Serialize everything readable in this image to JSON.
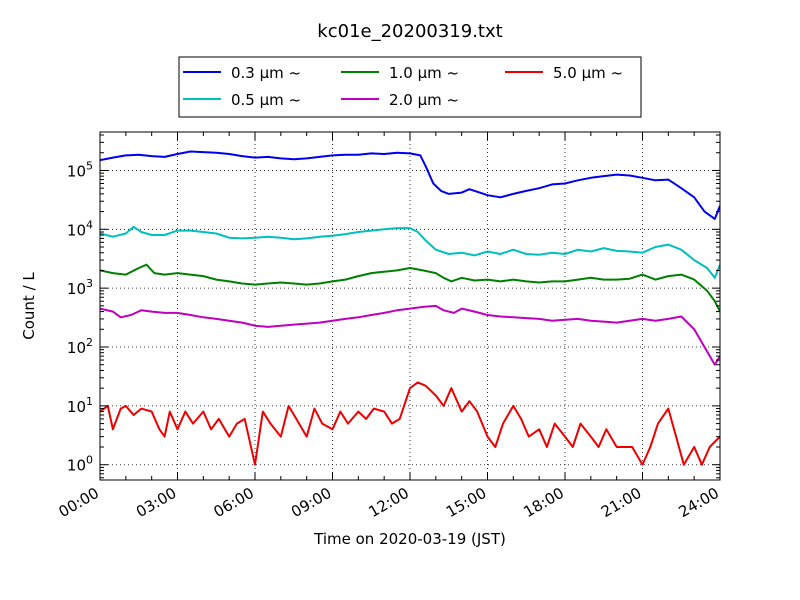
{
  "chart_data": {
    "type": "line",
    "title": "kc01e_20200319.txt",
    "xlabel": "Time on 2020-03-19 (JST)",
    "ylabel": "Count / L",
    "yscale": "log",
    "xlim": [
      "00:00",
      "24:00"
    ],
    "ylim": [
      0.55,
      450000
    ],
    "grid": true,
    "legend_position": "top-center",
    "xticks": [
      "00:00",
      "03:00",
      "06:00",
      "09:00",
      "12:00",
      "15:00",
      "18:00",
      "21:00",
      "24:00"
    ],
    "xtick_hours": [
      0,
      3,
      6,
      9,
      12,
      15,
      18,
      21,
      24
    ],
    "yticks": [
      1,
      10,
      100,
      1000,
      10000,
      100000
    ],
    "ytick_labels": [
      {
        "base": "10",
        "exp": "0"
      },
      {
        "base": "10",
        "exp": "1"
      },
      {
        "base": "10",
        "exp": "2"
      },
      {
        "base": "10",
        "exp": "3"
      },
      {
        "base": "10",
        "exp": "4"
      },
      {
        "base": "10",
        "exp": "5"
      }
    ],
    "series": [
      {
        "name": "0.3 μm ~",
        "color": "#0000ee",
        "points": [
          [
            0.0,
            150000
          ],
          [
            0.5,
            165000
          ],
          [
            1.0,
            180000
          ],
          [
            1.5,
            185000
          ],
          [
            2.0,
            175000
          ],
          [
            2.5,
            170000
          ],
          [
            3.0,
            190000
          ],
          [
            3.5,
            210000
          ],
          [
            4.0,
            205000
          ],
          [
            4.5,
            200000
          ],
          [
            5.0,
            190000
          ],
          [
            5.5,
            175000
          ],
          [
            6.0,
            165000
          ],
          [
            6.5,
            170000
          ],
          [
            7.0,
            160000
          ],
          [
            7.5,
            155000
          ],
          [
            8.0,
            160000
          ],
          [
            8.5,
            170000
          ],
          [
            9.0,
            180000
          ],
          [
            9.5,
            185000
          ],
          [
            10.0,
            185000
          ],
          [
            10.5,
            195000
          ],
          [
            11.0,
            190000
          ],
          [
            11.5,
            200000
          ],
          [
            12.0,
            195000
          ],
          [
            12.4,
            180000
          ],
          [
            12.6,
            120000
          ],
          [
            12.9,
            60000
          ],
          [
            13.2,
            45000
          ],
          [
            13.5,
            40000
          ],
          [
            14.0,
            42000
          ],
          [
            14.3,
            48000
          ],
          [
            14.7,
            42000
          ],
          [
            15.0,
            38000
          ],
          [
            15.5,
            35000
          ],
          [
            16.0,
            40000
          ],
          [
            16.5,
            45000
          ],
          [
            17.0,
            50000
          ],
          [
            17.5,
            58000
          ],
          [
            18.0,
            60000
          ],
          [
            18.5,
            68000
          ],
          [
            19.0,
            75000
          ],
          [
            19.5,
            80000
          ],
          [
            20.0,
            85000
          ],
          [
            20.5,
            82000
          ],
          [
            21.0,
            75000
          ],
          [
            21.5,
            68000
          ],
          [
            22.0,
            70000
          ],
          [
            22.5,
            50000
          ],
          [
            23.0,
            35000
          ],
          [
            23.4,
            20000
          ],
          [
            23.8,
            15000
          ],
          [
            24.0,
            25000
          ]
        ]
      },
      {
        "name": "0.5 μm ~",
        "color": "#00bfbf",
        "points": [
          [
            0.0,
            8500
          ],
          [
            0.5,
            7500
          ],
          [
            1.0,
            8500
          ],
          [
            1.3,
            11000
          ],
          [
            1.6,
            9000
          ],
          [
            2.0,
            8000
          ],
          [
            2.5,
            8000
          ],
          [
            3.0,
            9500
          ],
          [
            3.5,
            9500
          ],
          [
            4.0,
            9000
          ],
          [
            4.5,
            8500
          ],
          [
            5.0,
            7200
          ],
          [
            5.5,
            7000
          ],
          [
            6.0,
            7200
          ],
          [
            6.5,
            7500
          ],
          [
            7.0,
            7200
          ],
          [
            7.5,
            6800
          ],
          [
            8.0,
            7000
          ],
          [
            8.5,
            7500
          ],
          [
            9.0,
            7800
          ],
          [
            9.5,
            8300
          ],
          [
            10.0,
            9000
          ],
          [
            10.5,
            9500
          ],
          [
            11.0,
            10000
          ],
          [
            11.5,
            10500
          ],
          [
            12.0,
            10500
          ],
          [
            12.3,
            9000
          ],
          [
            12.6,
            6500
          ],
          [
            13.0,
            4500
          ],
          [
            13.5,
            3800
          ],
          [
            14.0,
            4000
          ],
          [
            14.5,
            3600
          ],
          [
            15.0,
            4200
          ],
          [
            15.5,
            3800
          ],
          [
            16.0,
            4500
          ],
          [
            16.5,
            3800
          ],
          [
            17.0,
            3700
          ],
          [
            17.5,
            4000
          ],
          [
            18.0,
            3800
          ],
          [
            18.5,
            4500
          ],
          [
            19.0,
            4200
          ],
          [
            19.5,
            4800
          ],
          [
            20.0,
            4300
          ],
          [
            20.5,
            4200
          ],
          [
            21.0,
            4000
          ],
          [
            21.5,
            5000
          ],
          [
            22.0,
            5500
          ],
          [
            22.5,
            4500
          ],
          [
            23.0,
            3000
          ],
          [
            23.5,
            2200
          ],
          [
            23.8,
            1500
          ],
          [
            24.0,
            2500
          ]
        ]
      },
      {
        "name": "1.0 μm ~",
        "color": "#008000",
        "points": [
          [
            0.0,
            2000
          ],
          [
            0.5,
            1800
          ],
          [
            1.0,
            1700
          ],
          [
            1.5,
            2200
          ],
          [
            1.8,
            2500
          ],
          [
            2.1,
            1800
          ],
          [
            2.5,
            1700
          ],
          [
            3.0,
            1800
          ],
          [
            3.5,
            1700
          ],
          [
            4.0,
            1600
          ],
          [
            4.5,
            1400
          ],
          [
            5.0,
            1300
          ],
          [
            5.5,
            1200
          ],
          [
            6.0,
            1150
          ],
          [
            6.5,
            1200
          ],
          [
            7.0,
            1250
          ],
          [
            7.5,
            1200
          ],
          [
            8.0,
            1150
          ],
          [
            8.5,
            1200
          ],
          [
            9.0,
            1300
          ],
          [
            9.5,
            1400
          ],
          [
            10.0,
            1600
          ],
          [
            10.5,
            1800
          ],
          [
            11.0,
            1900
          ],
          [
            11.5,
            2000
          ],
          [
            12.0,
            2200
          ],
          [
            12.5,
            2000
          ],
          [
            13.0,
            1800
          ],
          [
            13.3,
            1500
          ],
          [
            13.6,
            1300
          ],
          [
            14.0,
            1500
          ],
          [
            14.5,
            1350
          ],
          [
            15.0,
            1400
          ],
          [
            15.5,
            1300
          ],
          [
            16.0,
            1400
          ],
          [
            16.5,
            1300
          ],
          [
            17.0,
            1250
          ],
          [
            17.5,
            1300
          ],
          [
            18.0,
            1300
          ],
          [
            18.5,
            1400
          ],
          [
            19.0,
            1500
          ],
          [
            19.5,
            1400
          ],
          [
            20.0,
            1400
          ],
          [
            20.5,
            1450
          ],
          [
            21.0,
            1700
          ],
          [
            21.5,
            1400
          ],
          [
            22.0,
            1600
          ],
          [
            22.5,
            1700
          ],
          [
            23.0,
            1400
          ],
          [
            23.5,
            900
          ],
          [
            23.8,
            600
          ],
          [
            24.0,
            400
          ]
        ]
      },
      {
        "name": "2.0 μm ~",
        "color": "#bf00bf",
        "points": [
          [
            0.0,
            450
          ],
          [
            0.5,
            400
          ],
          [
            0.8,
            320
          ],
          [
            1.2,
            350
          ],
          [
            1.6,
            420
          ],
          [
            2.0,
            400
          ],
          [
            2.5,
            380
          ],
          [
            3.0,
            380
          ],
          [
            3.5,
            350
          ],
          [
            4.0,
            320
          ],
          [
            4.5,
            300
          ],
          [
            5.0,
            280
          ],
          [
            5.5,
            260
          ],
          [
            6.0,
            230
          ],
          [
            6.5,
            220
          ],
          [
            7.0,
            230
          ],
          [
            7.5,
            240
          ],
          [
            8.0,
            250
          ],
          [
            8.5,
            260
          ],
          [
            9.0,
            280
          ],
          [
            9.5,
            300
          ],
          [
            10.0,
            320
          ],
          [
            10.5,
            350
          ],
          [
            11.0,
            380
          ],
          [
            11.5,
            420
          ],
          [
            12.0,
            450
          ],
          [
            12.5,
            480
          ],
          [
            13.0,
            500
          ],
          [
            13.3,
            420
          ],
          [
            13.7,
            380
          ],
          [
            14.0,
            450
          ],
          [
            14.5,
            400
          ],
          [
            15.0,
            350
          ],
          [
            15.5,
            330
          ],
          [
            16.0,
            320
          ],
          [
            16.5,
            310
          ],
          [
            17.0,
            300
          ],
          [
            17.5,
            280
          ],
          [
            18.0,
            290
          ],
          [
            18.5,
            300
          ],
          [
            19.0,
            280
          ],
          [
            19.5,
            270
          ],
          [
            20.0,
            260
          ],
          [
            20.5,
            280
          ],
          [
            21.0,
            300
          ],
          [
            21.5,
            280
          ],
          [
            22.0,
            300
          ],
          [
            22.5,
            330
          ],
          [
            23.0,
            200
          ],
          [
            23.4,
            100
          ],
          [
            23.8,
            50
          ],
          [
            24.0,
            70
          ]
        ]
      },
      {
        "name": "5.0 μm ~",
        "color": "#ee0000",
        "points": [
          [
            0.0,
            8
          ],
          [
            0.3,
            10
          ],
          [
            0.5,
            4
          ],
          [
            0.8,
            9
          ],
          [
            1.0,
            10
          ],
          [
            1.3,
            7
          ],
          [
            1.6,
            9
          ],
          [
            2.0,
            8
          ],
          [
            2.3,
            4
          ],
          [
            2.5,
            3
          ],
          [
            2.7,
            8
          ],
          [
            3.0,
            4
          ],
          [
            3.3,
            8
          ],
          [
            3.6,
            5
          ],
          [
            4.0,
            8
          ],
          [
            4.3,
            4
          ],
          [
            4.6,
            6
          ],
          [
            5.0,
            3
          ],
          [
            5.3,
            5
          ],
          [
            5.6,
            6
          ],
          [
            6.0,
            1
          ],
          [
            6.3,
            8
          ],
          [
            6.6,
            5
          ],
          [
            7.0,
            3
          ],
          [
            7.3,
            10
          ],
          [
            7.6,
            6
          ],
          [
            8.0,
            3
          ],
          [
            8.3,
            9
          ],
          [
            8.6,
            5
          ],
          [
            9.0,
            4
          ],
          [
            9.3,
            8
          ],
          [
            9.6,
            5
          ],
          [
            10.0,
            8
          ],
          [
            10.3,
            6
          ],
          [
            10.6,
            9
          ],
          [
            11.0,
            8
          ],
          [
            11.3,
            5
          ],
          [
            11.6,
            6
          ],
          [
            12.0,
            20
          ],
          [
            12.3,
            25
          ],
          [
            12.6,
            22
          ],
          [
            13.0,
            15
          ],
          [
            13.3,
            10
          ],
          [
            13.6,
            20
          ],
          [
            14.0,
            8
          ],
          [
            14.3,
            12
          ],
          [
            14.6,
            8
          ],
          [
            15.0,
            3
          ],
          [
            15.3,
            2
          ],
          [
            15.6,
            5
          ],
          [
            16.0,
            10
          ],
          [
            16.3,
            6
          ],
          [
            16.6,
            3
          ],
          [
            17.0,
            4
          ],
          [
            17.3,
            2
          ],
          [
            17.6,
            5
          ],
          [
            18.0,
            3
          ],
          [
            18.3,
            2
          ],
          [
            18.6,
            5
          ],
          [
            19.0,
            3
          ],
          [
            19.3,
            2
          ],
          [
            19.6,
            4
          ],
          [
            20.0,
            2
          ],
          [
            20.3,
            2
          ],
          [
            20.6,
            2
          ],
          [
            21.0,
            1
          ],
          [
            21.3,
            2
          ],
          [
            21.6,
            5
          ],
          [
            22.0,
            9
          ],
          [
            22.3,
            3
          ],
          [
            22.6,
            1
          ],
          [
            23.0,
            2
          ],
          [
            23.3,
            1
          ],
          [
            23.6,
            2
          ],
          [
            24.0,
            3
          ]
        ]
      }
    ]
  }
}
